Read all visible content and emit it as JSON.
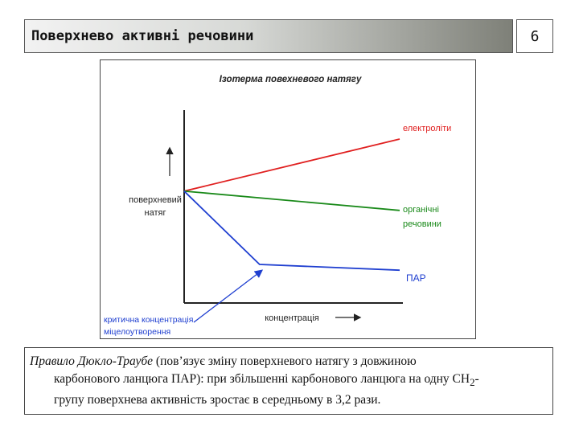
{
  "header": {
    "title": "Поверхнево активні речовини",
    "page_number": "6"
  },
  "chart_data": {
    "type": "line",
    "title": "Ізотерма повехневого натягу",
    "ylabel_line1": "поверхневий",
    "ylabel_line2": "натяг",
    "xlabel": "концентрація",
    "annotation_line1": "критична концентрація",
    "annotation_line2": "міцелоутворення",
    "series": [
      {
        "name": "електроліти",
        "color": "#e02020",
        "x": [
          0,
          1.0
        ],
        "y": [
          0.58,
          0.85
        ]
      },
      {
        "name_line1": "органічні",
        "name_line2": "речовини",
        "color": "#1a8a1a",
        "x": [
          0,
          1.0
        ],
        "y": [
          0.58,
          0.48
        ]
      },
      {
        "name": "ПАР",
        "color": "#1f3fd0",
        "x": [
          0,
          0.35,
          1.0
        ],
        "y": [
          0.58,
          0.2,
          0.17
        ]
      }
    ]
  },
  "caption": {
    "rule_name": "Правило Дюкло-Траубе",
    "line1_rest": " (пов’язує зміну поверхневого натягу з довжиною",
    "line2": "карбонового ланцюга ПАР): при збільшенні карбонового ланцюга на одну CH",
    "line2_sub": "2",
    "line2_end": "-",
    "line3": "групу поверхнева активність зростає в середньому в 3,2 рази."
  }
}
